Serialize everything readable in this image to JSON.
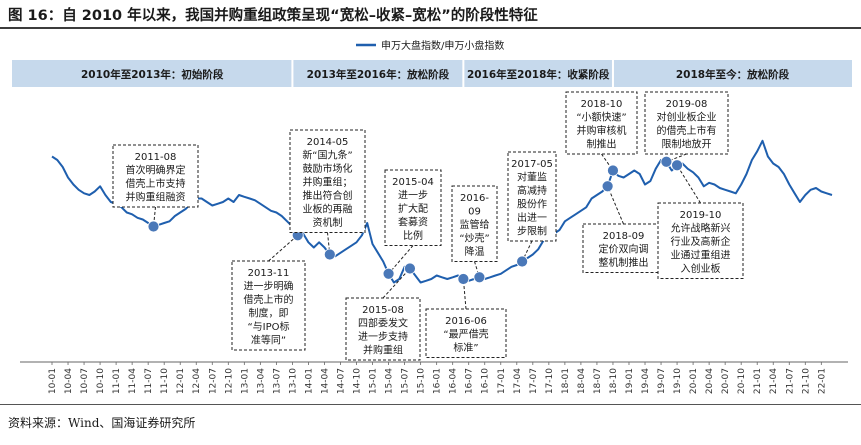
{
  "figure_title": "图 16：自 2010 年以来，我国并购重组政策呈现“宽松–收紧–宽松”的阶段性特征",
  "source": "资料来源：Wind、国海证券研究所",
  "colors": {
    "line": "#1f5fae",
    "marker": "#4a78b8",
    "band": "#c6d9ec",
    "band_border": "#6f9bc8",
    "text": "#1a1a1a"
  },
  "chart_data": {
    "type": "line",
    "title": "",
    "xlabel": "",
    "ylabel": "",
    "legend": {
      "position": "top-left",
      "entries": [
        "申万大盘指数/申万小盘指数"
      ]
    },
    "grid": false,
    "x_ticks": [
      "10-01",
      "10-04",
      "10-07",
      "10-10",
      "11-01",
      "11-04",
      "11-07",
      "11-10",
      "12-01",
      "12-04",
      "12-07",
      "12-10",
      "13-01",
      "13-04",
      "13-07",
      "13-10",
      "14-01",
      "14-04",
      "14-07",
      "14-10",
      "15-01",
      "15-04",
      "15-07",
      "15-10",
      "16-01",
      "16-04",
      "16-07",
      "16-10",
      "17-01",
      "17-04",
      "17-07",
      "17-10",
      "18-01",
      "18-04",
      "18-07",
      "18-10",
      "19-01",
      "19-04",
      "19-07",
      "19-10",
      "20-01",
      "20-04",
      "20-07",
      "20-10",
      "21-01",
      "21-04",
      "21-07",
      "21-10",
      "22-01"
    ],
    "ylim": [
      0,
      100
    ],
    "series": [
      {
        "name": "申万大盘指数/申万小盘指数",
        "points": [
          [
            "10-01",
            82
          ],
          [
            "10-02",
            80
          ],
          [
            "10-03",
            76
          ],
          [
            "10-04",
            70
          ],
          [
            "10-05",
            66
          ],
          [
            "10-06",
            63
          ],
          [
            "10-07",
            61
          ],
          [
            "10-08",
            60
          ],
          [
            "10-09",
            62
          ],
          [
            "10-10",
            65
          ],
          [
            "10-11",
            60
          ],
          [
            "10-12",
            56
          ],
          [
            "11-01",
            55
          ],
          [
            "11-02",
            53
          ],
          [
            "11-03",
            50
          ],
          [
            "11-04",
            49
          ],
          [
            "11-05",
            47
          ],
          [
            "11-06",
            46
          ],
          [
            "11-07",
            44
          ],
          [
            "11-08",
            42
          ],
          [
            "11-09",
            43
          ],
          [
            "11-10",
            44
          ],
          [
            "11-11",
            45
          ],
          [
            "11-12",
            48
          ],
          [
            "12-01",
            50
          ],
          [
            "12-02",
            52
          ],
          [
            "12-03",
            55
          ],
          [
            "12-04",
            58
          ],
          [
            "12-05",
            58
          ],
          [
            "12-06",
            56
          ],
          [
            "12-07",
            54
          ],
          [
            "12-08",
            55
          ],
          [
            "12-09",
            56
          ],
          [
            "12-10",
            58
          ],
          [
            "12-11",
            56
          ],
          [
            "12-12",
            60
          ],
          [
            "13-01",
            59
          ],
          [
            "13-02",
            58
          ],
          [
            "13-03",
            57
          ],
          [
            "13-04",
            55
          ],
          [
            "13-05",
            53
          ],
          [
            "13-06",
            51
          ],
          [
            "13-07",
            50
          ],
          [
            "13-08",
            48
          ],
          [
            "13-09",
            45
          ],
          [
            "13-10",
            42
          ],
          [
            "13-11",
            37
          ],
          [
            "13-12",
            38
          ],
          [
            "14-01",
            33
          ],
          [
            "14-02",
            30
          ],
          [
            "14-03",
            33
          ],
          [
            "14-04",
            30
          ],
          [
            "14-05",
            26
          ],
          [
            "14-06",
            25
          ],
          [
            "14-07",
            27
          ],
          [
            "14-08",
            29
          ],
          [
            "14-09",
            31
          ],
          [
            "14-10",
            33
          ],
          [
            "14-11",
            37
          ],
          [
            "14-12",
            44
          ],
          [
            "15-01",
            32
          ],
          [
            "15-02",
            27
          ],
          [
            "15-03",
            22
          ],
          [
            "15-04",
            15
          ],
          [
            "15-05",
            10
          ],
          [
            "15-06",
            12
          ],
          [
            "15-07",
            19
          ],
          [
            "15-08",
            18
          ],
          [
            "15-09",
            14
          ],
          [
            "15-10",
            10
          ],
          [
            "15-11",
            11
          ],
          [
            "15-12",
            12
          ],
          [
            "16-01",
            14
          ],
          [
            "16-02",
            13
          ],
          [
            "16-03",
            12
          ],
          [
            "16-04",
            13
          ],
          [
            "16-05",
            14
          ],
          [
            "16-06",
            12
          ],
          [
            "16-07",
            11
          ],
          [
            "16-08",
            12
          ],
          [
            "16-09",
            13
          ],
          [
            "16-10",
            12
          ],
          [
            "16-11",
            13
          ],
          [
            "16-12",
            14
          ],
          [
            "17-01",
            15
          ],
          [
            "17-02",
            17
          ],
          [
            "17-03",
            19
          ],
          [
            "17-04",
            20
          ],
          [
            "17-05",
            22
          ],
          [
            "17-06",
            24
          ],
          [
            "17-07",
            26
          ],
          [
            "17-08",
            29
          ],
          [
            "17-09",
            34
          ],
          [
            "17-10",
            37
          ],
          [
            "17-11",
            38
          ],
          [
            "17-12",
            40
          ],
          [
            "18-01",
            45
          ],
          [
            "18-02",
            47
          ],
          [
            "18-03",
            49
          ],
          [
            "18-04",
            51
          ],
          [
            "18-05",
            53
          ],
          [
            "18-06",
            58
          ],
          [
            "18-07",
            60
          ],
          [
            "18-08",
            62
          ],
          [
            "18-09",
            65
          ],
          [
            "18-10",
            74
          ],
          [
            "18-11",
            71
          ],
          [
            "18-12",
            70
          ],
          [
            "19-01",
            72
          ],
          [
            "19-02",
            74
          ],
          [
            "19-03",
            72
          ],
          [
            "19-04",
            66
          ],
          [
            "19-05",
            68
          ],
          [
            "19-06",
            75
          ],
          [
            "19-07",
            80
          ],
          [
            "19-08",
            79
          ],
          [
            "19-09",
            74
          ],
          [
            "19-10",
            77
          ],
          [
            "19-11",
            78
          ],
          [
            "19-12",
            75
          ],
          [
            "20-01",
            73
          ],
          [
            "20-02",
            70
          ],
          [
            "20-03",
            65
          ],
          [
            "20-04",
            67
          ],
          [
            "20-05",
            66
          ],
          [
            "20-06",
            64
          ],
          [
            "20-07",
            63
          ],
          [
            "20-08",
            62
          ],
          [
            "20-09",
            61
          ],
          [
            "20-10",
            66
          ],
          [
            "20-11",
            72
          ],
          [
            "20-12",
            80
          ],
          [
            "21-01",
            85
          ],
          [
            "21-02",
            91
          ],
          [
            "21-03",
            82
          ],
          [
            "21-04",
            78
          ],
          [
            "21-05",
            76
          ],
          [
            "21-06",
            72
          ],
          [
            "21-07",
            66
          ],
          [
            "21-08",
            61
          ],
          [
            "21-09",
            56
          ],
          [
            "21-10",
            60
          ],
          [
            "21-11",
            63
          ],
          [
            "21-12",
            64
          ],
          [
            "22-01",
            62
          ],
          [
            "22-02",
            61
          ],
          [
            "22-03",
            60
          ]
        ]
      }
    ],
    "phases": [
      {
        "label": "2010年至2013年：初始阶段",
        "start": "10-01",
        "end": "13-10"
      },
      {
        "label": "2013年至2016年：放松阶段",
        "start": "13-10",
        "end": "16-06"
      },
      {
        "label": "2016年至2018年：收紧阶段",
        "start": "16-06",
        "end": "18-10"
      },
      {
        "label": "2018年至今：放松阶段",
        "start": "18-10",
        "end": "22-03"
      }
    ],
    "annotations": [
      {
        "date": "11-08",
        "lines": [
          "2011-08",
          "首次明确界定",
          "借壳上市支持",
          "并购重组融资"
        ]
      },
      {
        "date": "13-11",
        "lines": [
          "2013-11",
          "进一步明确",
          "借壳上市的",
          "制度，即",
          "“与IPO标",
          "准等同”"
        ]
      },
      {
        "date": "14-05",
        "lines": [
          "2014-05",
          "新“国九条”",
          "鼓励市场化",
          "并购重组；",
          "推出符合创",
          "业板的再融",
          "资机制"
        ]
      },
      {
        "date": "15-04",
        "lines": [
          "2015-04",
          "进一步",
          "扩大配",
          "套募资",
          "比例"
        ]
      },
      {
        "date": "15-08",
        "lines": [
          "2015-08",
          "四部委发文",
          "进一步支持",
          "并购重组"
        ]
      },
      {
        "date": "16-06",
        "lines": [
          "2016-06",
          "“最严借壳",
          "标准”"
        ]
      },
      {
        "date": "16-09",
        "lines": [
          "2016-",
          "09",
          "监管给",
          "“炒壳”",
          "降温"
        ]
      },
      {
        "date": "17-05",
        "lines": [
          "2017-05",
          "对董监",
          "高减持",
          "股份作",
          "出进一",
          "步限制"
        ]
      },
      {
        "date": "18-09",
        "lines": [
          "2018-09",
          "定价双向调",
          "整机制推出"
        ]
      },
      {
        "date": "18-10",
        "lines": [
          "2018-10",
          "“小额快速”",
          "并购审核机",
          "制推出"
        ]
      },
      {
        "date": "19-08",
        "lines": [
          "2019-08",
          "对创业板企业",
          "的借壳上市有",
          "限制地放开"
        ]
      },
      {
        "date": "19-10",
        "lines": [
          "2019-10",
          "允许战略新兴",
          "行业及高新企",
          "业通过重组进",
          "入创业板"
        ]
      }
    ]
  }
}
